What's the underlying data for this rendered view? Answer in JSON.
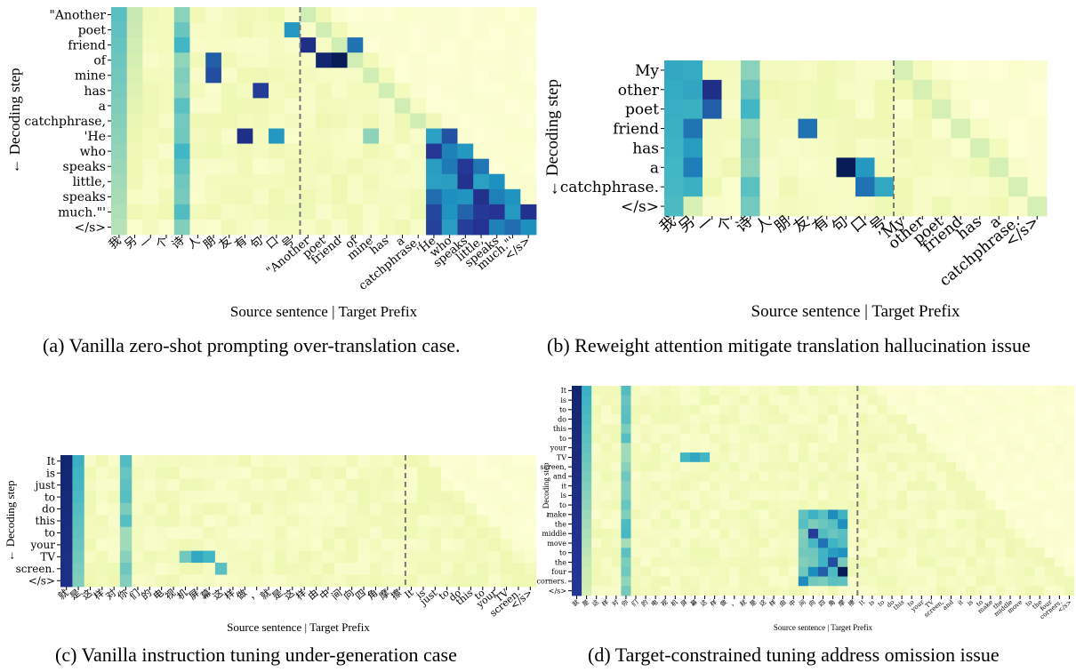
{
  "chart_data": [
    {
      "type": "heatmap",
      "panel": "a",
      "caption": "(a) Vanilla zero-shot prompting over-translation case.",
      "xlabel": "Source sentence | Target Prefix",
      "ylabel": "← Decoding step",
      "y_labels": [
        "\"Another",
        "poet",
        "friend",
        "of",
        "mine",
        "has",
        "a",
        "catchphrase,",
        "'He",
        "who",
        "speaks",
        "little,",
        "speaks",
        "much.\"'",
        "</s>"
      ],
      "x_source": [
        "我",
        "另",
        "一",
        "个",
        "诗",
        "人",
        "朋",
        "友",
        "有",
        "句",
        "口",
        "号"
      ],
      "x_target": [
        "\"Another",
        "poet",
        "friend",
        "of",
        "mine",
        "has",
        "a",
        "catchphrase,",
        "'He",
        "who",
        "speaks",
        "little,",
        "speaks",
        "much.\"'",
        "</s>"
      ],
      "hot_cells": [
        [
          6,
          4,
          0.8
        ],
        [
          6,
          3,
          0.75
        ],
        [
          8,
          8,
          0.9
        ],
        [
          9,
          5,
          0.85
        ],
        [
          10,
          8,
          0.6
        ],
        [
          11,
          1,
          0.6
        ],
        [
          12,
          2,
          0.9
        ],
        [
          13,
          3,
          0.95
        ],
        [
          14,
          3,
          1.0
        ],
        [
          15,
          2,
          0.7
        ],
        [
          16,
          8,
          0.35
        ]
      ]
    },
    {
      "type": "heatmap",
      "panel": "b",
      "caption": "(b) Reweight attention mitigate translation hallucination issue",
      "xlabel": "Source sentence | Target Prefix",
      "ylabel": "← Decoding step",
      "y_labels": [
        "My",
        "other",
        "poet",
        "friend",
        "has",
        "a",
        "catchphrase.",
        "</s>"
      ],
      "x_source": [
        "我",
        "另",
        "一",
        "个",
        "诗",
        "人",
        "朋",
        "友",
        "有",
        "句",
        "口",
        "号"
      ],
      "x_target": [
        "’My",
        "other",
        "poet",
        "friend",
        "has",
        "a",
        "catchphrase.",
        "</s>"
      ]
    },
    {
      "type": "heatmap",
      "panel": "c",
      "caption": "(c) Vanilla instruction tuning under-generation case",
      "xlabel": "Source sentence | Target Prefix",
      "ylabel": "← Decoding step",
      "y_labels": [
        "It",
        "is",
        "just",
        "to",
        "do",
        "this",
        "to",
        "your",
        "TV",
        "screen.",
        "</s>"
      ],
      "x_source": [
        "就",
        "是",
        "这",
        "样",
        "对",
        "你",
        "们",
        "的",
        "电",
        "视",
        "机",
        "屏",
        "幕",
        "这",
        "样",
        "做",
        "，",
        "就",
        "是",
        "这",
        "样",
        "由",
        "中",
        "间",
        "向",
        "四",
        "角",
        "摩",
        "擦"
      ],
      "x_target": [
        "It",
        "is",
        "just",
        "to",
        "do",
        "this",
        "to",
        "your",
        "TV",
        "screen.",
        "</s>"
      ]
    },
    {
      "type": "heatmap",
      "panel": "d",
      "caption": "(d) Target-constrained tuning address omission issue",
      "xlabel": "Source sentence | Target Prefix",
      "ylabel": "← Decoding step",
      "y_labels": [
        "It",
        "is",
        "to",
        "do",
        "this",
        "to",
        "your",
        "TV",
        "screen,",
        "and",
        "it",
        "is",
        "to",
        "make",
        "the",
        "middle",
        "move",
        "to",
        "the",
        "four",
        "corners.",
        "</s>"
      ],
      "x_source": [
        "就",
        "是",
        "这",
        "样",
        "对",
        "你",
        "们",
        "的",
        "电",
        "视",
        "机",
        "屏",
        "幕",
        "这",
        "样",
        "做",
        "，",
        "就",
        "是",
        "这",
        "样",
        "由",
        "中",
        "间",
        "向",
        "四",
        "角",
        "摩",
        "擦"
      ],
      "x_target": [
        "It",
        "is",
        "to",
        "do",
        "this",
        "to",
        "your",
        "TV",
        "screen,",
        "and",
        "it",
        "is",
        "to",
        "make",
        "the",
        "middle",
        "move",
        "to",
        "the",
        "four",
        "corners.",
        "</s>"
      ]
    }
  ]
}
